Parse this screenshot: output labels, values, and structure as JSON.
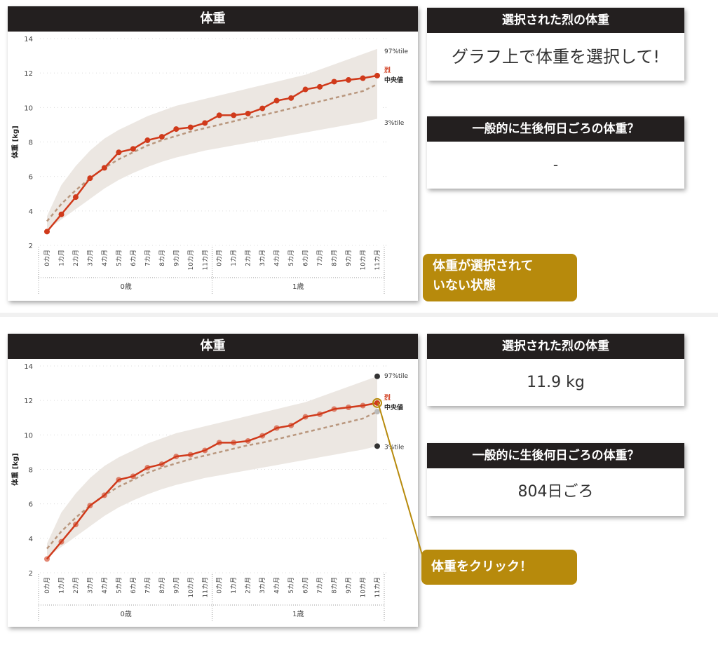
{
  "top": {
    "chart_title": "体重",
    "selected_header": "選択された烈の体重",
    "selected_value": "グラフ上で体重を選択して!",
    "general_header": "一般的に生後何日ごろの体重？",
    "general_value": "-",
    "callout": [
      "体重が選択されて",
      "いない状態"
    ]
  },
  "bottom": {
    "chart_title": "体重",
    "selected_header": "選択された烈の体重",
    "selected_value": "11.9 kg",
    "general_header": "一般的に生後何日ごろの体重？",
    "general_value": "804日ごろ",
    "callout": "体重をクリック！"
  },
  "colors": {
    "header_bg": "#231f1f",
    "series_red": "#d03a1b",
    "median_dashed": "#b9977e",
    "band": "#ece7e2",
    "callout_gold": "#b78a0c"
  },
  "chart_data": {
    "type": "line",
    "ylabel": "体重 [kg]",
    "ylim": [
      2,
      14
    ],
    "yticks": [
      2,
      4,
      6,
      8,
      10,
      12,
      14
    ],
    "x": [
      "0カ月",
      "1カ月",
      "2カ月",
      "3カ月",
      "4カ月",
      "5カ月",
      "6カ月",
      "7カ月",
      "8カ月",
      "9カ月",
      "10カ月",
      "11カ月",
      "0カ月",
      "1カ月",
      "2カ月",
      "3カ月",
      "4カ月",
      "5カ月",
      "6カ月",
      "7カ月",
      "8カ月",
      "9カ月",
      "10カ月",
      "11カ月"
    ],
    "groups": [
      {
        "label": "0歳",
        "count": 12
      },
      {
        "label": "1歳",
        "count": 12
      }
    ],
    "series": [
      {
        "name": "烈",
        "values": [
          2.8,
          3.8,
          4.8,
          5.9,
          6.5,
          7.4,
          7.6,
          8.1,
          8.3,
          8.75,
          8.85,
          9.1,
          9.55,
          9.55,
          9.65,
          9.95,
          10.4,
          10.55,
          11.05,
          11.2,
          11.5,
          11.6,
          11.7,
          11.85
        ]
      },
      {
        "name": "中央値",
        "values": [
          3.4,
          4.4,
          5.2,
          5.9,
          6.5,
          7.0,
          7.4,
          7.8,
          8.1,
          8.35,
          8.6,
          8.8,
          9.0,
          9.2,
          9.4,
          9.55,
          9.75,
          9.95,
          10.15,
          10.35,
          10.55,
          10.75,
          10.95,
          11.35
        ]
      },
      {
        "name": "97%tile",
        "values": [
          3.7,
          5.5,
          6.6,
          7.5,
          8.2,
          8.7,
          9.1,
          9.5,
          9.8,
          10.1,
          10.3,
          10.5,
          10.7,
          10.9,
          11.1,
          11.3,
          11.5,
          11.7,
          11.9,
          12.2,
          12.5,
          12.8,
          13.1,
          13.4
        ]
      },
      {
        "name": "3%tile",
        "values": [
          2.9,
          3.5,
          4.1,
          4.7,
          5.3,
          5.8,
          6.2,
          6.55,
          6.85,
          7.1,
          7.3,
          7.5,
          7.65,
          7.8,
          7.95,
          8.1,
          8.25,
          8.4,
          8.55,
          8.7,
          8.85,
          9.0,
          9.15,
          9.35
        ]
      }
    ],
    "selected_point": {
      "x": "11カ月",
      "y": 11.85
    },
    "legend": [
      "97%tile",
      "烈",
      "中央値",
      "3%tile"
    ]
  }
}
